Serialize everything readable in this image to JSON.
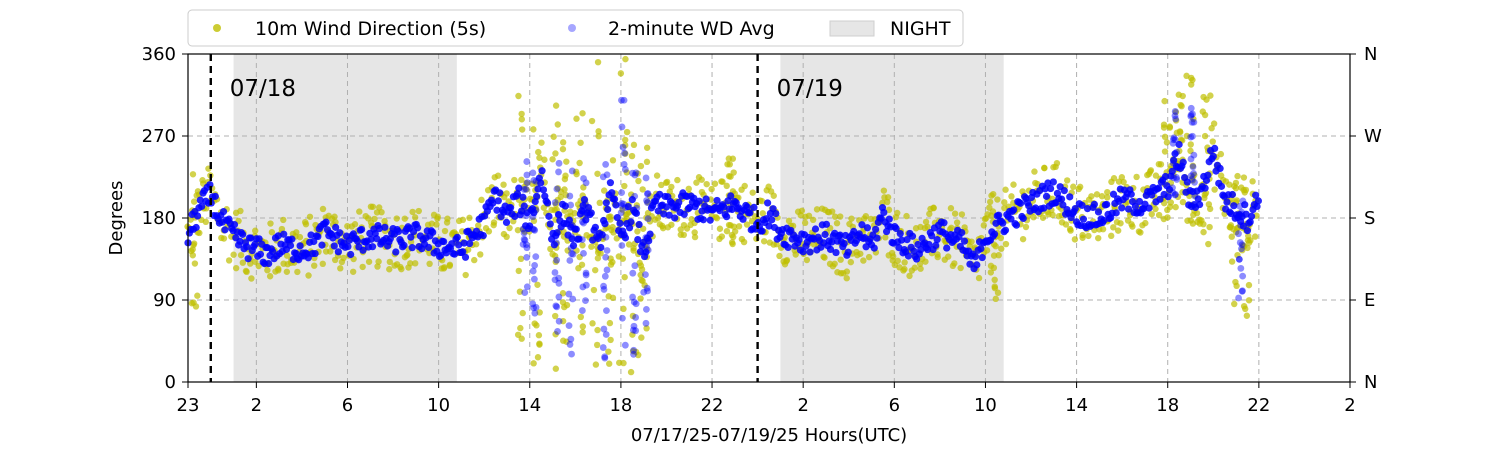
{
  "chart_data": {
    "type": "scatter",
    "xlabel": "07/17/25-07/19/25  Hours(UTC)",
    "ylabel": "Degrees",
    "x_unit": "hours UTC from 23:00 on 07/17/25",
    "xlim": [
      0,
      51
    ],
    "ylim": [
      0,
      360
    ],
    "x_ticks": [
      {
        "x": 0,
        "label": "23"
      },
      {
        "x": 3,
        "label": "2"
      },
      {
        "x": 7,
        "label": "6"
      },
      {
        "x": 11,
        "label": "10"
      },
      {
        "x": 15,
        "label": "14"
      },
      {
        "x": 19,
        "label": "18"
      },
      {
        "x": 23,
        "label": "22"
      },
      {
        "x": 27,
        "label": "2"
      },
      {
        "x": 31,
        "label": "6"
      },
      {
        "x": 35,
        "label": "10"
      },
      {
        "x": 39,
        "label": "14"
      },
      {
        "x": 43,
        "label": "18"
      },
      {
        "x": 47,
        "label": "22"
      },
      {
        "x": 51,
        "label": "2"
      }
    ],
    "y_ticks_left": [
      {
        "y": 0,
        "label": "0"
      },
      {
        "y": 90,
        "label": "90"
      },
      {
        "y": 180,
        "label": "180"
      },
      {
        "y": 270,
        "label": "270"
      },
      {
        "y": 360,
        "label": "360"
      }
    ],
    "y_ticks_right": [
      {
        "y": 0,
        "label": "N"
      },
      {
        "y": 90,
        "label": "E"
      },
      {
        "y": 180,
        "label": "S"
      },
      {
        "y": 270,
        "label": "W"
      },
      {
        "y": 360,
        "label": "N"
      }
    ],
    "grid": true,
    "legend": {
      "placement": "top, above plot",
      "entries": [
        {
          "label": "10m Wind Direction (5s)",
          "color": "#bfbf00",
          "marker": "dot"
        },
        {
          "label": "2-minute WD Avg",
          "color": "#0000ff",
          "marker": "dot"
        },
        {
          "label": "NIGHT",
          "color": "#e6e6e6",
          "marker": "patch"
        }
      ]
    },
    "day_markers": [
      {
        "x": 1,
        "label": "07/18"
      },
      {
        "x": 25,
        "label": "07/19"
      }
    ],
    "night_spans": [
      [
        2,
        11.8
      ],
      [
        26,
        35.8
      ]
    ],
    "series": [
      {
        "name": "2-minute WD Avg",
        "color": "#0000ff",
        "spread": 14,
        "points": [
          [
            0,
            160
          ],
          [
            0.5,
            190
          ],
          [
            1,
            205
          ],
          [
            1.5,
            175
          ],
          [
            2,
            160
          ],
          [
            2.5,
            150
          ],
          [
            3,
            145
          ],
          [
            3.5,
            140
          ],
          [
            4,
            150
          ],
          [
            5,
            145
          ],
          [
            5.5,
            150
          ],
          [
            6,
            165
          ],
          [
            7,
            150
          ],
          [
            8,
            160
          ],
          [
            9,
            155
          ],
          [
            10,
            160
          ],
          [
            11,
            150
          ],
          [
            12,
            145
          ],
          [
            13,
            175
          ],
          [
            13.5,
            205
          ],
          [
            14,
            180
          ],
          [
            14.5,
            200
          ],
          [
            15,
            175
          ],
          [
            15.5,
            230
          ],
          [
            16,
            160
          ],
          [
            16.5,
            185
          ],
          [
            17,
            155
          ],
          [
            17.5,
            195
          ],
          [
            18,
            145
          ],
          [
            18.5,
            210
          ],
          [
            19,
            160
          ],
          [
            19.5,
            190
          ],
          [
            20,
            140
          ],
          [
            20.5,
            195
          ],
          [
            21,
            190
          ],
          [
            22,
            195
          ],
          [
            23,
            185
          ],
          [
            24,
            195
          ],
          [
            25,
            175
          ],
          [
            25.5,
            185
          ],
          [
            26,
            165
          ],
          [
            27,
            155
          ],
          [
            28,
            160
          ],
          [
            29,
            145
          ],
          [
            29.5,
            165
          ],
          [
            30,
            150
          ],
          [
            30.5,
            185
          ],
          [
            31,
            160
          ],
          [
            32,
            145
          ],
          [
            33,
            165
          ],
          [
            34,
            150
          ],
          [
            34.5,
            125
          ],
          [
            35,
            160
          ],
          [
            36,
            180
          ],
          [
            37,
            195
          ],
          [
            38,
            210
          ],
          [
            39,
            185
          ],
          [
            40,
            180
          ],
          [
            41,
            200
          ],
          [
            42,
            195
          ],
          [
            43,
            215
          ],
          [
            43.5,
            250
          ],
          [
            44,
            195
          ],
          [
            44.5,
            210
          ],
          [
            45,
            255
          ],
          [
            45.5,
            200
          ],
          [
            46,
            190
          ],
          [
            46.5,
            180
          ],
          [
            47,
            200
          ]
        ],
        "spikes": [
          [
            14.8,
            60,
            290
          ],
          [
            15.2,
            70,
            230
          ],
          [
            16.2,
            40,
            260
          ],
          [
            16.8,
            30,
            240
          ],
          [
            17.4,
            60,
            230
          ],
          [
            18.3,
            5,
            250
          ],
          [
            19.1,
            10,
            330
          ],
          [
            19.6,
            30,
            230
          ],
          [
            20.1,
            50,
            230
          ],
          [
            43.3,
            200,
            300
          ],
          [
            44.1,
            190,
            305
          ],
          [
            46.2,
            85,
            210
          ]
        ]
      },
      {
        "name": "10m Wind Direction (5s)",
        "color": "#bfbf00",
        "spread": 34,
        "spikes": [
          [
            0.3,
            70,
            230
          ],
          [
            14.6,
            40,
            320
          ],
          [
            15.3,
            20,
            280
          ],
          [
            16.1,
            10,
            340
          ],
          [
            16.6,
            15,
            290
          ],
          [
            17.2,
            30,
            300
          ],
          [
            17.9,
            0,
            360
          ],
          [
            18.5,
            20,
            300
          ],
          [
            19.1,
            0,
            360
          ],
          [
            19.6,
            10,
            300
          ],
          [
            20.0,
            30,
            280
          ],
          [
            23.8,
            150,
            250
          ],
          [
            35.4,
            70,
            220
          ],
          [
            43.0,
            170,
            310
          ],
          [
            43.5,
            180,
            320
          ],
          [
            44.0,
            160,
            340
          ],
          [
            44.7,
            150,
            320
          ],
          [
            45.9,
            70,
            250
          ],
          [
            46.4,
            60,
            240
          ]
        ]
      }
    ]
  }
}
